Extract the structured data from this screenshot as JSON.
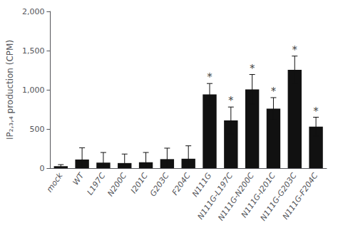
{
  "chart_data": {
    "type": "bar",
    "categories": [
      "mock",
      "WT",
      "L197C",
      "N200C",
      "I201C",
      "G203C",
      "F204C",
      "N111G",
      "N111G-L197C",
      "N111G-N200C",
      "N111G-I201C",
      "N111G-G203C",
      "N111G-F204C"
    ],
    "values": [
      25,
      110,
      70,
      65,
      75,
      115,
      120,
      940,
      610,
      1005,
      760,
      1255,
      530
    ],
    "errors": [
      20,
      150,
      130,
      115,
      125,
      140,
      165,
      140,
      170,
      190,
      140,
      175,
      120
    ],
    "color": "#111111",
    "ylabel": "IP₂,₃,₄ production (CPM)",
    "ylim": [
      0,
      2000
    ],
    "yticks": [
      0,
      500,
      1000,
      1500,
      2000
    ],
    "grid": false,
    "annotations": [
      {
        "text": "*",
        "category": "N111G"
      },
      {
        "text": "*",
        "category": "N111G-L197C"
      },
      {
        "text": "*",
        "category": "N111G-N200C"
      },
      {
        "text": "*",
        "category": "N111G-I201C"
      },
      {
        "text": "*",
        "category": "N111G-G203C"
      },
      {
        "text": "*",
        "category": "N111G-F204C"
      }
    ]
  }
}
